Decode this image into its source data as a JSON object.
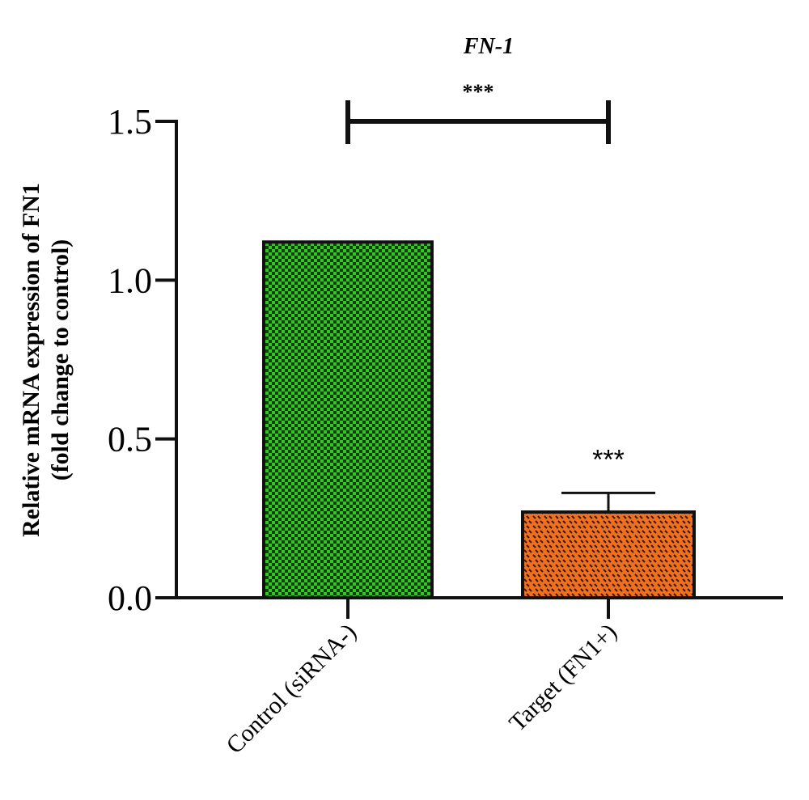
{
  "chart_data": {
    "type": "bar",
    "title": "FN-1",
    "ylabel_lines": [
      "Relative mRNA expression of FN1",
      "(fold change to control)"
    ],
    "xlabel": "",
    "categories": [
      "Control (siRNA-)",
      "Target (FN1+)"
    ],
    "values": [
      1.12,
      0.27
    ],
    "error_plus": [
      0,
      0.06
    ],
    "ylim": [
      0,
      1.5
    ],
    "yticks": [
      0.0,
      0.5,
      1.0,
      1.5
    ],
    "ytick_labels": [
      "0.0",
      "0.5",
      "1.0",
      "1.5"
    ],
    "bar_colors": [
      "#2ccc1e",
      "#f07020"
    ],
    "bar_patterns": [
      "checker",
      "dots"
    ],
    "significance": [
      {
        "label": "***",
        "type": "bracket",
        "from": 0,
        "to": 1,
        "y": 1.5
      },
      {
        "label": "***",
        "type": "above-bar",
        "bar": 1
      }
    ],
    "grid": false,
    "legend": "none"
  }
}
